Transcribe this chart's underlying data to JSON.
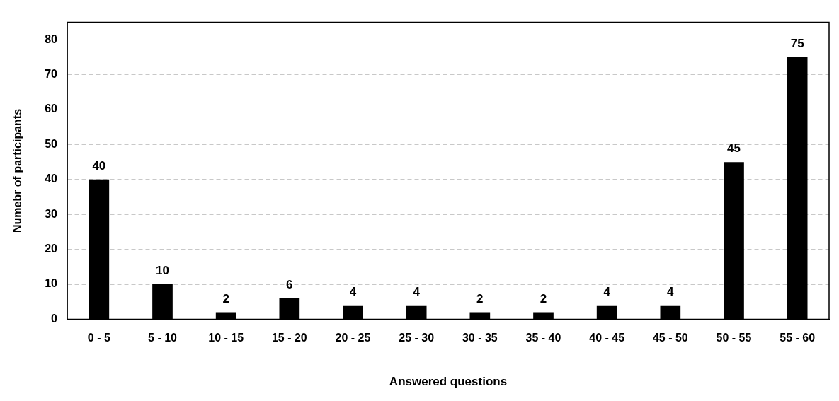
{
  "chart_data": {
    "type": "bar",
    "xlabel": "Answered questions",
    "ylabel": "Numebr of participants",
    "categories": [
      "0 - 5",
      "5 - 10",
      "10 - 15",
      "15 - 20",
      "20 - 25",
      "25 - 30",
      "30 - 35",
      "35 - 40",
      "40 - 45",
      "45 - 50",
      "50 - 55",
      "55 - 60"
    ],
    "values": [
      40,
      10,
      2,
      6,
      4,
      4,
      2,
      2,
      4,
      4,
      45,
      75
    ],
    "color": "#000000",
    "ylim": [
      0,
      85
    ],
    "yticks": [
      0,
      10,
      20,
      30,
      40,
      50,
      60,
      70,
      80
    ],
    "grid": "y",
    "data_labels": true,
    "legend": false
  }
}
